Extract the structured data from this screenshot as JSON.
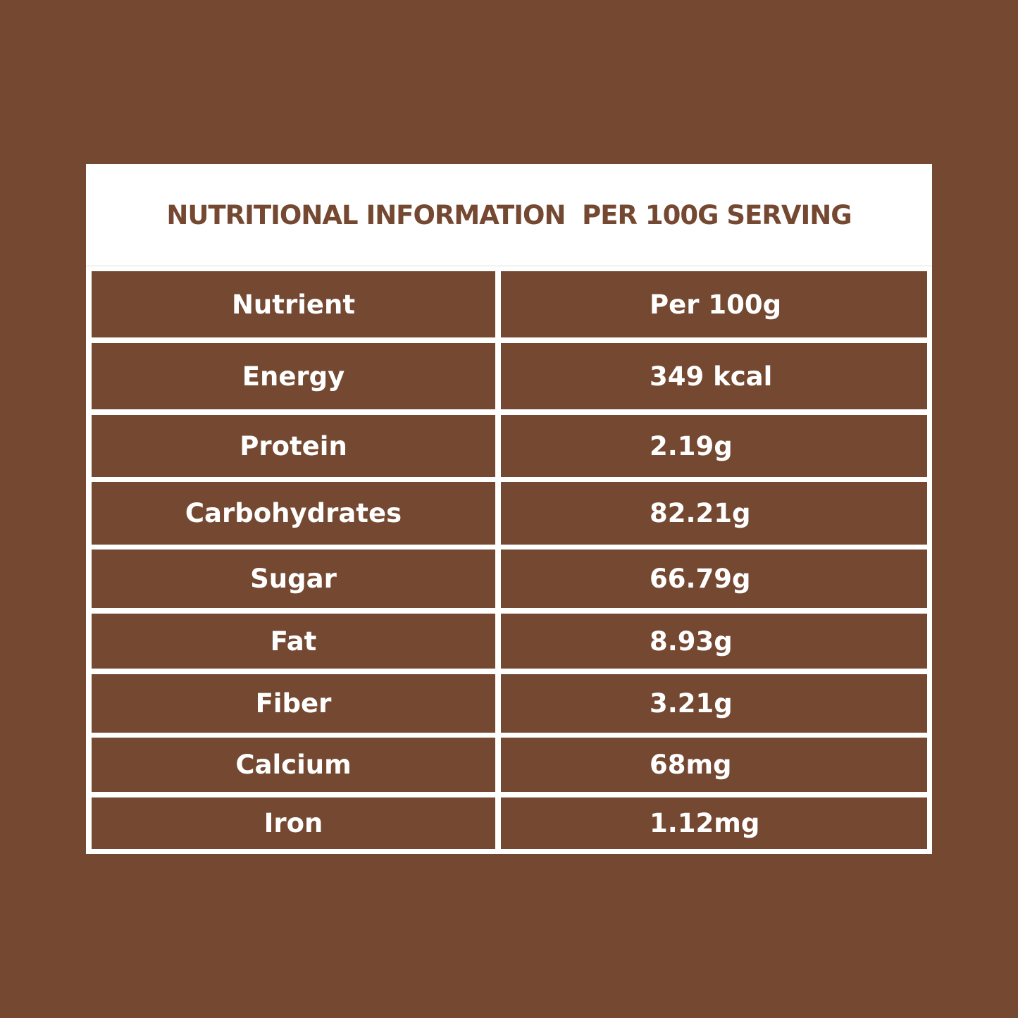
{
  "header": {
    "title": "NUTRITIONAL INFORMATION  PER 100G SERVING"
  },
  "table": {
    "columns": [
      "Nutrient",
      "Per 100g"
    ],
    "rows": [
      [
        "Energy",
        "349 kcal"
      ],
      [
        "Protein",
        "2.19g"
      ],
      [
        "Carbohydrates",
        "82.21g"
      ],
      [
        "Sugar",
        "66.79g"
      ],
      [
        "Fat",
        "8.93g"
      ],
      [
        "Fiber",
        "3.21g"
      ],
      [
        "Calcium",
        "68mg"
      ],
      [
        "Iron",
        "1.12mg"
      ]
    ]
  }
}
